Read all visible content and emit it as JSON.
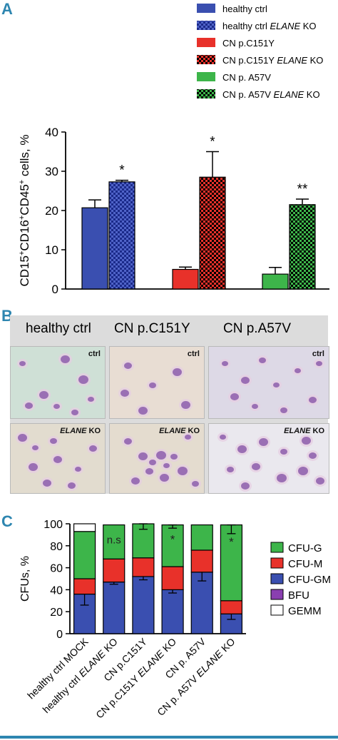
{
  "panels": {
    "a": {
      "letter": "A"
    },
    "b": {
      "letter": "B"
    },
    "c": {
      "letter": "C"
    }
  },
  "legend_a": [
    {
      "label": "healthy ctrl",
      "label_italic": "",
      "label_suffix": "",
      "color": "#3a4fb0",
      "pattern": "solid"
    },
    {
      "label": "healthy ctrl ",
      "label_italic": "ELANE",
      "label_suffix": " KO",
      "color": "#3a4fb0",
      "pattern": "checker"
    },
    {
      "label": "CN p.C151Y",
      "label_italic": "",
      "label_suffix": "",
      "color": "#e8312a",
      "pattern": "solid"
    },
    {
      "label": "CN p.C151Y ",
      "label_italic": "ELANE",
      "label_suffix": " KO",
      "color": "#e8312a",
      "pattern": "checker"
    },
    {
      "label": "CN p. A57V",
      "label_italic": "",
      "label_suffix": "",
      "color": "#3db54a",
      "pattern": "solid"
    },
    {
      "label": "CN p. A57V ",
      "label_italic": "ELANE",
      "label_suffix": " KO",
      "color": "#3db54a",
      "pattern": "checker"
    }
  ],
  "panel_b": {
    "column_headers": [
      "healthy ctrl",
      "CN p.C151Y",
      "CN p.A57V"
    ],
    "row_tags": [
      {
        "italic": "",
        "text": "ctrl"
      },
      {
        "italic": "ELANE",
        "text": " KO"
      }
    ]
  },
  "chart_data": [
    {
      "type": "bar",
      "ylabel_parts": [
        "CD15",
        "+",
        "CD16",
        "+",
        "CD45",
        "+",
        " cells, %"
      ],
      "ylim": [
        0,
        40
      ],
      "yticks": [
        "0",
        "10",
        "20",
        "30",
        "40"
      ],
      "series": [
        {
          "name": "healthy ctrl",
          "value": 20.7,
          "error": 2.0,
          "star": ""
        },
        {
          "name": "healthy ctrl ELANE KO",
          "value": 27.3,
          "error": 0.4,
          "star": "*"
        },
        {
          "name": "CN p.C151Y",
          "value": 5.0,
          "error": 0.6,
          "star": ""
        },
        {
          "name": "CN p.C151Y ELANE KO",
          "value": 28.5,
          "error": 6.5,
          "star": "*"
        },
        {
          "name": "CN p. A57V",
          "value": 3.8,
          "error": 1.7,
          "star": ""
        },
        {
          "name": "CN p. A57V ELANE KO",
          "value": 21.5,
          "error": 1.4,
          "star": "**"
        }
      ],
      "grid": false
    },
    {
      "type": "bar",
      "stacked": true,
      "ylabel": "CFUs, %",
      "ylim": [
        0,
        100
      ],
      "yticks": [
        "0",
        "20",
        "40",
        "60",
        "80",
        "100"
      ],
      "categories": [
        {
          "pre": "healthy ctrl MOCK",
          "italic": "",
          "post": ""
        },
        {
          "pre": "healthy ctrl ",
          "italic": "ELANE",
          "post": " KO"
        },
        {
          "pre": "CN p.C151Y",
          "italic": "",
          "post": ""
        },
        {
          "pre": "CN p.C151Y ",
          "italic": "ELANE",
          "post": " KO"
        },
        {
          "pre": "CN p. A57V",
          "italic": "",
          "post": ""
        },
        {
          "pre": "CN p. A57V ",
          "italic": "ELANE",
          "post": " KO"
        }
      ],
      "series": [
        {
          "name": "CFU-GM",
          "color": "#3a4fb0",
          "values": [
            36,
            47,
            52,
            40,
            56,
            18
          ],
          "errors": [
            10,
            2,
            3,
            3,
            8,
            5
          ]
        },
        {
          "name": "CFU-M",
          "color": "#e8312a",
          "values": [
            14,
            21,
            17,
            21,
            20,
            12
          ],
          "errors": [
            0,
            0,
            0,
            0,
            0,
            0
          ]
        },
        {
          "name": "CFU-G",
          "color": "#3db54a",
          "values": [
            43,
            31,
            31,
            38,
            23,
            69
          ],
          "errors": [
            0,
            0,
            5,
            3,
            0,
            8
          ]
        },
        {
          "name": "BFU",
          "color": "#8a3fb0",
          "values": [
            0,
            0,
            0,
            0,
            0,
            0
          ],
          "errors": [
            0,
            0,
            0,
            0,
            0,
            0
          ]
        },
        {
          "name": "GEMM",
          "color": "#ffffff",
          "values": [
            7,
            0,
            0,
            0,
            0,
            0
          ],
          "errors": [
            0,
            0,
            0,
            0,
            0,
            0
          ]
        }
      ],
      "annotations": [
        {
          "category_index": 1,
          "text": "n.s"
        },
        {
          "category_index": 3,
          "text": "*"
        },
        {
          "category_index": 5,
          "text": "*"
        }
      ],
      "legend": [
        {
          "name": "CFU-G",
          "color": "#3db54a"
        },
        {
          "name": "CFU-M",
          "color": "#e8312a"
        },
        {
          "name": "CFU-GM",
          "color": "#3a4fb0"
        },
        {
          "name": "BFU",
          "color": "#8a3fb0"
        },
        {
          "name": "GEMM",
          "color": "#ffffff"
        }
      ]
    }
  ]
}
